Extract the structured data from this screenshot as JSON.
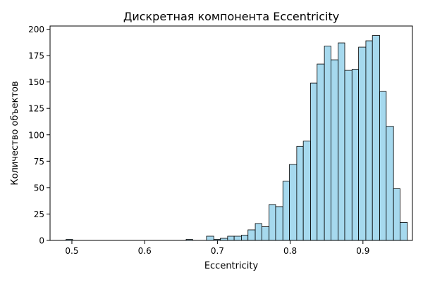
{
  "chart_data": {
    "type": "bar",
    "subtype": "histogram",
    "title": "Дискретная компонента Eccentricity",
    "xlabel": "Eccentricity",
    "ylabel": "Количество объектов",
    "xlim": [
      0.47,
      0.968
    ],
    "ylim": [
      0,
      203
    ],
    "xticks": [
      "0.5",
      "0.6",
      "0.7",
      "0.8",
      "0.9"
    ],
    "yticks": [
      "0",
      "25",
      "50",
      "75",
      "100",
      "125",
      "150",
      "175",
      "200"
    ],
    "grid": false,
    "bar_color": "#a6d9ee",
    "edge_color": "#000000",
    "bins": [
      {
        "x0": 0.492,
        "x1": 0.501,
        "count": 1
      },
      {
        "x0": 0.657,
        "x1": 0.666,
        "count": 1
      },
      {
        "x0": 0.685,
        "x1": 0.695,
        "count": 4
      },
      {
        "x0": 0.695,
        "x1": 0.704,
        "count": 1
      },
      {
        "x0": 0.704,
        "x1": 0.714,
        "count": 2
      },
      {
        "x0": 0.714,
        "x1": 0.723,
        "count": 4
      },
      {
        "x0": 0.723,
        "x1": 0.733,
        "count": 4
      },
      {
        "x0": 0.733,
        "x1": 0.742,
        "count": 5
      },
      {
        "x0": 0.742,
        "x1": 0.752,
        "count": 10
      },
      {
        "x0": 0.752,
        "x1": 0.761,
        "count": 16
      },
      {
        "x0": 0.761,
        "x1": 0.771,
        "count": 13
      },
      {
        "x0": 0.771,
        "x1": 0.78,
        "count": 34
      },
      {
        "x0": 0.78,
        "x1": 0.79,
        "count": 32
      },
      {
        "x0": 0.79,
        "x1": 0.799,
        "count": 56
      },
      {
        "x0": 0.799,
        "x1": 0.809,
        "count": 72
      },
      {
        "x0": 0.809,
        "x1": 0.818,
        "count": 89
      },
      {
        "x0": 0.818,
        "x1": 0.828,
        "count": 94
      },
      {
        "x0": 0.828,
        "x1": 0.837,
        "count": 149
      },
      {
        "x0": 0.837,
        "x1": 0.847,
        "count": 167
      },
      {
        "x0": 0.847,
        "x1": 0.856,
        "count": 184
      },
      {
        "x0": 0.856,
        "x1": 0.866,
        "count": 171
      },
      {
        "x0": 0.866,
        "x1": 0.875,
        "count": 187
      },
      {
        "x0": 0.875,
        "x1": 0.885,
        "count": 161
      },
      {
        "x0": 0.885,
        "x1": 0.894,
        "count": 162
      },
      {
        "x0": 0.894,
        "x1": 0.904,
        "count": 183
      },
      {
        "x0": 0.904,
        "x1": 0.913,
        "count": 189
      },
      {
        "x0": 0.913,
        "x1": 0.923,
        "count": 194
      },
      {
        "x0": 0.923,
        "x1": 0.932,
        "count": 141
      },
      {
        "x0": 0.932,
        "x1": 0.942,
        "count": 108
      },
      {
        "x0": 0.942,
        "x1": 0.951,
        "count": 49
      },
      {
        "x0": 0.951,
        "x1": 0.961,
        "count": 17
      }
    ]
  }
}
